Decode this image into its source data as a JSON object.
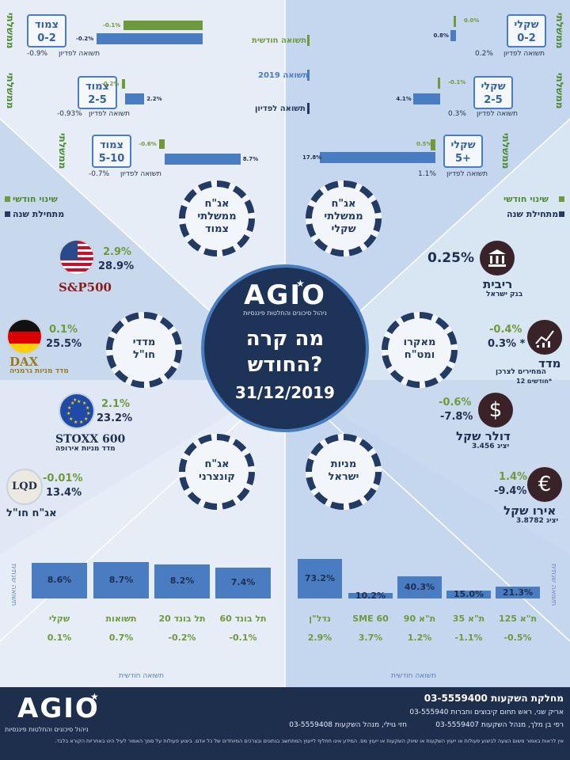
{
  "center": {
    "logo": "AGIO",
    "logo_sub": "ניהול סיכונים והחלטות פיננסיות",
    "title_line1": "מה קרה",
    "title_line2": "החודש?",
    "date": "31/12/2019"
  },
  "top_legend": {
    "monthly": "תשואה חודשית",
    "ytd": "תשואה 2019",
    "redemption": "תשואה לפדיון"
  },
  "bonds_cpi": {
    "vertical_label": "ממשלתי",
    "rows": [
      {
        "box": [
          "צמוד",
          "0-2"
        ],
        "monthly": "-0.1%",
        "ytd": "-0.2%",
        "redemption_label": "תשואה לפדיון",
        "redemption": "-0.9%",
        "ytd_value": -0.2,
        "monthly_value": -0.1
      },
      {
        "box": [
          "צמוד",
          "2-5"
        ],
        "monthly": "-0.2%",
        "ytd": "2.2%",
        "redemption_label": "תשואה לפדיון",
        "redemption": "-0.93%",
        "ytd_value": 2.2,
        "monthly_value": -0.2
      },
      {
        "box": [
          "צמוד",
          "5-10"
        ],
        "monthly": "-0.6%",
        "ytd": "8.7%",
        "redemption_label": "תשואה לפדיון",
        "redemption": "-0.7%",
        "ytd_value": 8.7,
        "monthly_value": -0.6
      }
    ]
  },
  "bonds_shekel": {
    "vertical_label": "ממשלתי",
    "rows": [
      {
        "box": [
          "שקלי",
          "0-2"
        ],
        "monthly": "0.0%",
        "ytd": "0.8%",
        "redemption_label": "תשואה לפדיון",
        "redemption": "0.2%",
        "ytd_value": 0.8,
        "monthly_value": 0.0
      },
      {
        "box": [
          "שקלי",
          "2-5"
        ],
        "monthly": "-0.1%",
        "ytd": "4.1%",
        "redemption_label": "תשואה לפדיון",
        "redemption": "0.3%",
        "ytd_value": 4.1,
        "monthly_value": -0.1
      },
      {
        "box": [
          "שקלי",
          "5+"
        ],
        "monthly": "0.5%",
        "ytd": "17.8%",
        "redemption_label": "תשואה לפדיון",
        "redemption": "1.1%",
        "ytd_value": 17.8,
        "monthly_value": 0.5
      }
    ]
  },
  "side_legend": {
    "monthly": "שינוי חודשי",
    "ytd": "מתחילת שנה"
  },
  "circles": {
    "gov_cpi": [
      "אג\"ח",
      "ממשלתי",
      "צמוד"
    ],
    "gov_shekel": [
      "אג\"ח",
      "ממשלתי",
      "שקלי"
    ],
    "foreign": [
      "מדדי",
      "חו\"ל"
    ],
    "macro": [
      "מאקרו",
      "ומט\"ח"
    ],
    "corporate": [
      "אג\"ח",
      "קונצרני"
    ],
    "israel": [
      "מניות",
      "ישראל"
    ]
  },
  "foreign_indices": [
    {
      "name": "S&P500",
      "sub": "",
      "monthly": "2.9%",
      "ytd": "28.9%"
    },
    {
      "name": "DAX",
      "sub": "מדד מניות גרמניה",
      "monthly": "0.1%",
      "ytd": "25.5%"
    },
    {
      "name": "STOXX 600",
      "sub": "מדד מניות אירופה",
      "monthly": "2.1%",
      "ytd": "23.2%"
    },
    {
      "name": "אג\"ח חו\"ל",
      "sub": "",
      "logo": "LQD",
      "monthly": "-0.01%",
      "ytd": "13.4%"
    }
  ],
  "macro": [
    {
      "label": "ריבית",
      "sub": "בנק ישראל",
      "value": "0.25%",
      "icon": "bank-icon"
    },
    {
      "label": "מדד",
      "sub": "המחירים לצרכן",
      "sub2": "12 חודשים*",
      "monthly": "-0.4%",
      "ytd": "0.3% *",
      "icon": "chart-icon"
    },
    {
      "label": "דולר שקל",
      "sub": "יציג",
      "rate": "3.456",
      "monthly": "-0.6%",
      "ytd": "-7.8%",
      "icon": "dollar-icon"
    },
    {
      "label": "אירו שקל",
      "sub": "יציג",
      "rate": "3.8782",
      "monthly": "1.4%",
      "ytd": "-9.4%",
      "icon": "euro-icon"
    }
  ],
  "corporate_chart": {
    "side_label": "תשואה שנתית",
    "bottom_label": "תשואה חודשית",
    "categories": [
      "שקלי",
      "תשואות",
      "תל בונד 20",
      "תל בונד 60"
    ],
    "annual": [
      8.6,
      8.7,
      8.2,
      7.4
    ],
    "annual_labels": [
      "8.6%",
      "8.7%",
      "8.2%",
      "7.4%"
    ],
    "monthly_labels": [
      "0.1%",
      "0.7%",
      "-0.2%",
      "-0.1%"
    ]
  },
  "israel_chart": {
    "side_label": "תשואה שנתית",
    "bottom_label": "תשואה חודשית",
    "categories": [
      "נדל\"ן",
      "SME 60",
      "ת\"א 90",
      "ת\"א 35",
      "ת\"א 125"
    ],
    "annual": [
      73.2,
      10.2,
      40.3,
      15.0,
      21.3
    ],
    "annual_labels": [
      "73.2%",
      "10.2%",
      "40.3%",
      "15.0%",
      "21.3%"
    ],
    "monthly_labels": [
      "2.9%",
      "3.7%",
      "1.2%",
      "-1.1%",
      "-0.5%"
    ]
  },
  "footer": {
    "logo": "AGIO",
    "logo_sub": "ניהול סיכונים והחלטות פיננסיות",
    "dept": "מחלקת השקעות 03-5559400",
    "line1": "אריק שני, ראש תחום קיבוצים וחברות 03-555940",
    "line2a": "רפי בן מלך, מנהל השקעות 03-5559407",
    "line2b": "חזי גוילי, מנהל השקעות 03-5559408",
    "disclaimer": "אין לראות באמור משום הצעה לביצוע פעולות או ייעוץ השקעות או שיווק השקעות או ייעוץ מס. המידע אינו תחליף לייעוץ המתחשב בנתונים ובצרכים המיוחדים של כל אדם. ביצוע פעולות על סמך האמור לעיל הינו באחריות הקורא בלבד."
  }
}
